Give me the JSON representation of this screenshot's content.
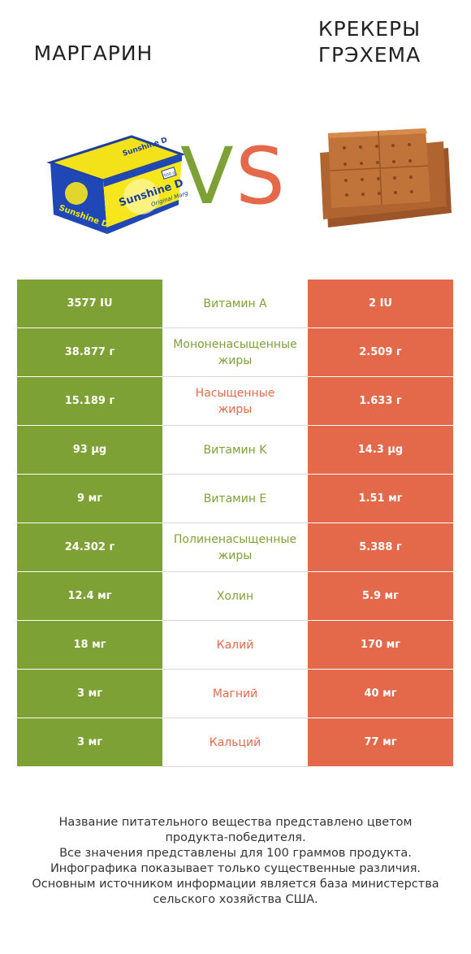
{
  "header": {
    "left_title": "МАРГАРИН",
    "right_title": "КРЕКЕРЫ\nГРЭХЕМА",
    "vs_v": "V",
    "vs_s": "S"
  },
  "images": {
    "left": {
      "icon": "margarine-package-image",
      "brand_text": "Sunshine D",
      "label": "Original Margarine",
      "weight": "500 g"
    },
    "right": {
      "icon": "graham-crackers-image"
    }
  },
  "colors": {
    "left_winner": "#7ea135",
    "right_winner": "#e4694b"
  },
  "rows": [
    {
      "left": "3577 IU",
      "name": "Витамин A",
      "right": "2 IU",
      "winner": "left"
    },
    {
      "left": "38.877 г",
      "name": "Мононенасыщенные\nжиры",
      "right": "2.509 г",
      "winner": "left"
    },
    {
      "left": "15.189 г",
      "name": "Насыщенные\nжиры",
      "right": "1.633 г",
      "winner": "right"
    },
    {
      "left": "93 µg",
      "name": "Витамин K",
      "right": "14.3 µg",
      "winner": "left"
    },
    {
      "left": "9 мг",
      "name": "Витамин E",
      "right": "1.51 мг",
      "winner": "left"
    },
    {
      "left": "24.302 г",
      "name": "Полиненасыщенные\nжиры",
      "right": "5.388 г",
      "winner": "left"
    },
    {
      "left": "12.4 мг",
      "name": "Холин",
      "right": "5.9 мг",
      "winner": "left"
    },
    {
      "left": "18 мг",
      "name": "Калий",
      "right": "170 мг",
      "winner": "right"
    },
    {
      "left": "3 мг",
      "name": "Магний",
      "right": "40 мг",
      "winner": "right"
    },
    {
      "left": "3 мг",
      "name": "Кальций",
      "right": "77 мг",
      "winner": "right"
    }
  ],
  "footer": {
    "lines": [
      "Название питательного вещества представлено цветом",
      "продукта-победителя.",
      "Все значения представлены для 100 граммов продукта.",
      "Инфографика показывает только существенные различия.",
      "Основным источником информации является база министерства",
      "сельского хозяйства США."
    ]
  }
}
